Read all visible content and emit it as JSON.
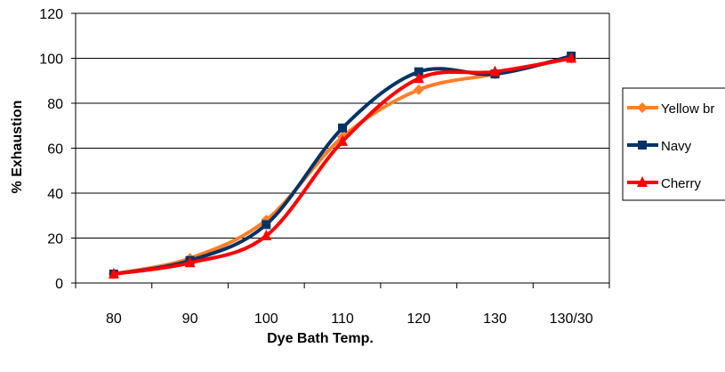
{
  "chart_data": {
    "type": "line",
    "xlabel": "Dye Bath Temp.",
    "ylabel": "% Exhaustion",
    "categories": [
      "80",
      "90",
      "100",
      "110",
      "120",
      "130",
      "130/30"
    ],
    "ylim": [
      0,
      120
    ],
    "yticks": [
      0,
      20,
      40,
      60,
      80,
      100,
      120
    ],
    "grid": true,
    "legend_position": "right",
    "series": [
      {
        "name": "Yellow br",
        "color": "#FF7F27",
        "marker": "diamond",
        "values": [
          4,
          11,
          28,
          65,
          86,
          93,
          100
        ]
      },
      {
        "name": "Navy",
        "color": "#003366",
        "marker": "square",
        "values": [
          4,
          10,
          26,
          69,
          94,
          93,
          101
        ]
      },
      {
        "name": "Cherry",
        "color": "#FF0000",
        "marker": "triangle",
        "values": [
          4,
          9,
          21,
          63,
          91,
          94,
          100
        ]
      }
    ]
  }
}
